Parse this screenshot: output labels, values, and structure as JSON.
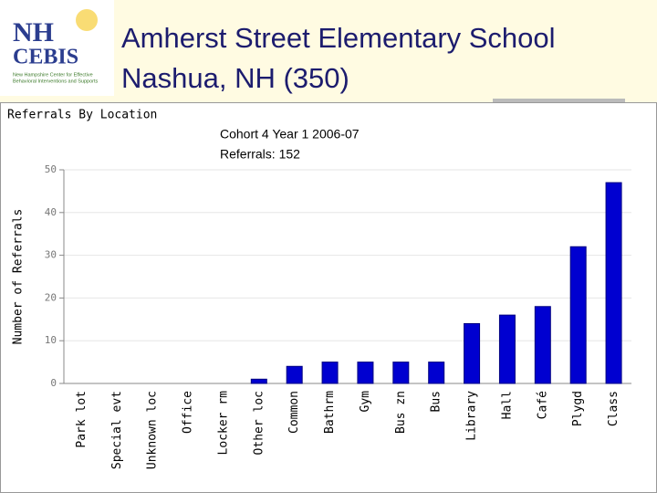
{
  "header": {
    "logo": {
      "name_top": "NH",
      "name_bottom": "CEBIS",
      "tagline": [
        "New Hampshire Center for Effective",
        "Behavioral Interventions and Supports"
      ]
    },
    "title": [
      "Amherst Street Elementary School",
      "Nashua, NH (350)"
    ]
  },
  "chart_data": {
    "type": "bar",
    "title": "Referrals By Location",
    "annotations": [
      "Cohort 4 Year 1 2006-07",
      "Referrals: 152"
    ],
    "y_label": "Number of Referrals",
    "categories": [
      "Park lot",
      "Special evt",
      "Unknown loc",
      "Office",
      "Locker rm",
      "Other loc",
      "Common",
      "Bathrm",
      "Gym",
      "Bus zn",
      "Bus",
      "Library",
      "Hall",
      "Café",
      "Plygd",
      "Class"
    ],
    "values": [
      0,
      0,
      0,
      0,
      0,
      1,
      4,
      5,
      5,
      5,
      5,
      14,
      16,
      18,
      32,
      47
    ],
    "color": "#0000d0",
    "ylim": [
      0,
      50
    ],
    "yticks": [
      0,
      10,
      20,
      30,
      40,
      50
    ],
    "grid": true
  }
}
